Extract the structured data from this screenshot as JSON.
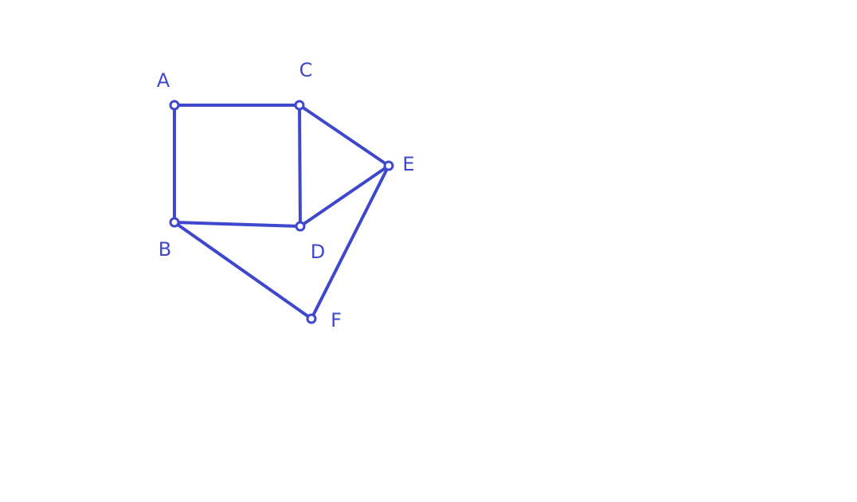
{
  "graph": {
    "color": "#3f48cc",
    "nodes": [
      {
        "id": "A",
        "label": "A"
      },
      {
        "id": "B",
        "label": "B"
      },
      {
        "id": "C",
        "label": "C"
      },
      {
        "id": "D",
        "label": "D"
      },
      {
        "id": "E",
        "label": "E"
      },
      {
        "id": "F",
        "label": "F"
      }
    ],
    "edges": [
      [
        "A",
        "C"
      ],
      [
        "A",
        "B"
      ],
      [
        "B",
        "D"
      ],
      [
        "C",
        "D"
      ],
      [
        "C",
        "E"
      ],
      [
        "D",
        "E"
      ],
      [
        "B",
        "F"
      ],
      [
        "F",
        "E"
      ]
    ]
  }
}
